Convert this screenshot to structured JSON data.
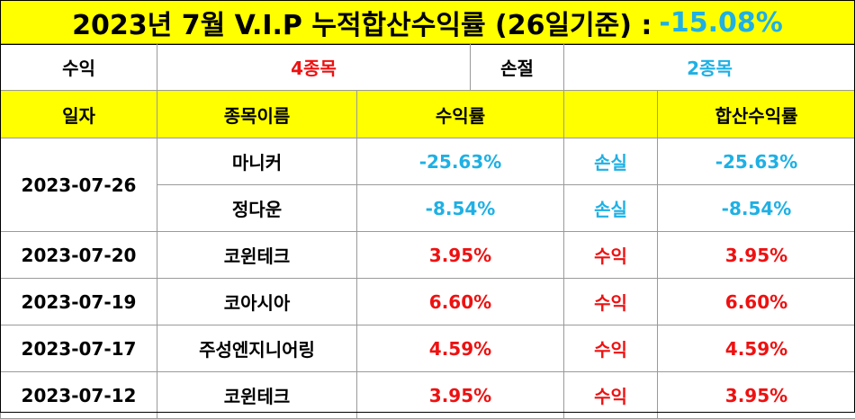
{
  "title": {
    "text": "2023년 7월 V.I.P 누적합산수익률 (26일기준) :",
    "percent": "-15.08%"
  },
  "summary": {
    "profit_label": "수익",
    "profit_value": "4종목",
    "loss_label": "손절",
    "loss_value": "2종목"
  },
  "headers": {
    "date": "일자",
    "name": "종목이름",
    "return": "수익률",
    "status": "",
    "total": "합산수익률"
  },
  "rows": [
    {
      "date": "2023-07-26",
      "name": "마니커",
      "return": "-25.63%",
      "status": "손실",
      "total": "-25.63%"
    },
    {
      "date": "",
      "name": "정다운",
      "return": "-8.54%",
      "status": "손실",
      "total": "-8.54%"
    },
    {
      "date": "2023-07-20",
      "name": "코윈테크",
      "return": "3.95%",
      "status": "수익",
      "total": "3.95%"
    },
    {
      "date": "2023-07-19",
      "name": "코아시아",
      "return": "6.60%",
      "status": "수익",
      "total": "6.60%"
    },
    {
      "date": "2023-07-17",
      "name": "주성엔지니어링",
      "return": "4.59%",
      "status": "수익",
      "total": "4.59%"
    },
    {
      "date": "2023-07-12",
      "name": "코윈테크",
      "return": "3.95%",
      "status": "수익",
      "total": "3.95%"
    }
  ],
  "colors": {
    "header_bg": "#ffff00",
    "profit": "#ee1111",
    "loss": "#1fb0e4"
  }
}
